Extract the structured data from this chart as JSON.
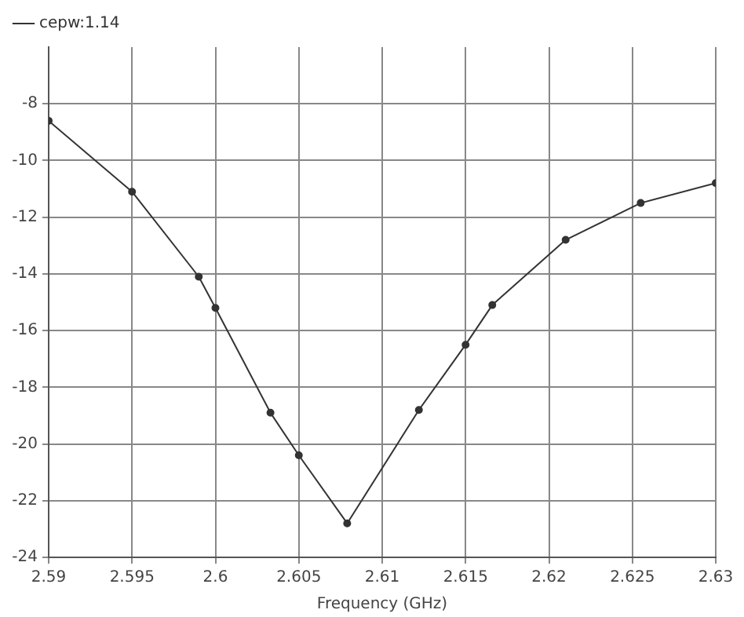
{
  "chart_data": {
    "type": "line",
    "xlabel": "Frequency (GHz)",
    "series": [
      {
        "name": "cepw:1.14",
        "color": "#333333",
        "x": [
          2.59,
          2.595,
          2.599,
          2.6,
          2.6033,
          2.605,
          2.6079,
          2.6122,
          2.615,
          2.6166,
          2.621,
          2.6255,
          2.63
        ],
        "values": [
          -8.6,
          -11.1,
          -14.1,
          -15.2,
          -18.9,
          -20.4,
          -22.8,
          -18.8,
          -16.5,
          -15.1,
          -12.8,
          -11.5,
          -10.8
        ]
      }
    ],
    "xlim": [
      2.59,
      2.63
    ],
    "xticks": [
      2.59,
      2.595,
      2.6,
      2.605,
      2.61,
      2.615,
      2.62,
      2.625,
      2.63
    ],
    "ylim": [
      -24,
      -6
    ],
    "yticks": [
      -24,
      -22,
      -20,
      -18,
      -16,
      -14,
      -12,
      -10,
      -8
    ],
    "grid": true,
    "legend": "top left",
    "marker": "circle",
    "line_style": "solid"
  }
}
